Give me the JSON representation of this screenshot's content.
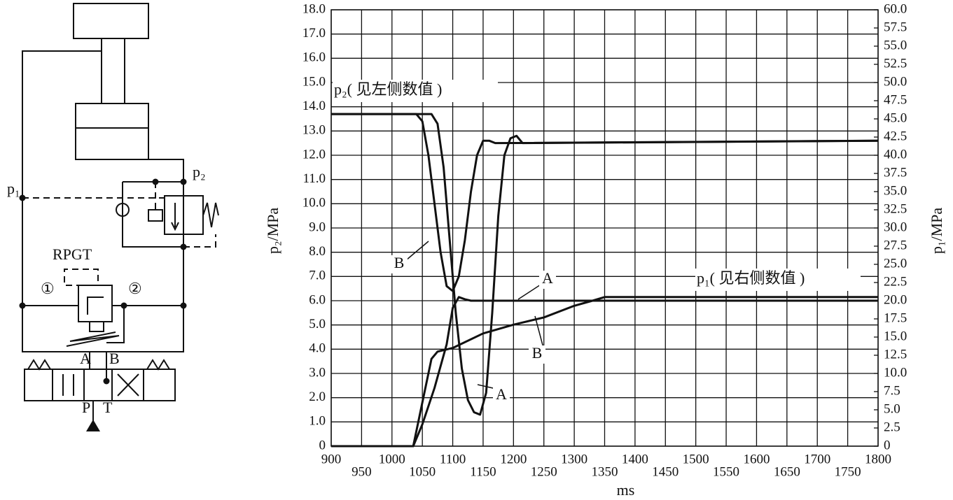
{
  "chart_data": {
    "type": "line",
    "x_label": "ms",
    "y_label": "p₂/MPa",
    "y2_label": "p₁/MPa",
    "annotations": [
      "p₂( 见左侧数值 )",
      "p₁( 见右侧数值 )"
    ],
    "xlim": [
      900,
      1800
    ],
    "xticks": [
      900,
      950,
      1000,
      1050,
      1100,
      1150,
      1200,
      1250,
      1300,
      1350,
      1400,
      1450,
      1500,
      1550,
      1600,
      1650,
      1700,
      1750,
      1800
    ],
    "ylim": [
      0,
      18
    ],
    "yticks": [
      0,
      {
        "value": 1,
        "label": "1.0"
      },
      {
        "value": 2,
        "label": "2.0"
      },
      {
        "value": 3,
        "label": "3.0"
      },
      {
        "value": 4,
        "label": "4.0"
      },
      {
        "value": 5,
        "label": "5.0"
      },
      {
        "value": 6,
        "label": "6.0"
      },
      {
        "value": 7,
        "label": "7.0"
      },
      {
        "value": 8,
        "label": "8.0"
      },
      {
        "value": 9,
        "label": "9.0"
      },
      {
        "value": 10,
        "label": "10.0"
      },
      {
        "value": 11,
        "label": "11.0"
      },
      {
        "value": 12,
        "label": "12.0"
      },
      {
        "value": 13,
        "label": "13.0"
      },
      {
        "value": 14,
        "label": "14.0"
      },
      {
        "value": 15,
        "label": "15.0"
      },
      {
        "value": 16,
        "label": "16.0"
      },
      {
        "value": 17,
        "label": "17.0"
      },
      {
        "value": 18,
        "label": "18.0"
      }
    ],
    "y2lim": [
      0,
      60
    ],
    "y2ticks": [
      0,
      2.5,
      {
        "value": 5,
        "label": "5.0"
      },
      7.5,
      {
        "value": 10,
        "label": "10.0"
      },
      12.5,
      {
        "value": 15,
        "label": "15.0"
      },
      17.5,
      {
        "value": 20,
        "label": "20.0"
      },
      22.5,
      {
        "value": 25,
        "label": "25.0"
      },
      27.5,
      {
        "value": 30,
        "label": "30.0"
      },
      32.5,
      {
        "value": 35,
        "label": "35.0"
      },
      37.5,
      {
        "value": 40,
        "label": "40.0"
      },
      42.5,
      {
        "value": 45,
        "label": "45.0"
      },
      47.5,
      {
        "value": 50,
        "label": "50.0"
      },
      52.5,
      {
        "value": 55,
        "label": "55.0"
      },
      57.5,
      {
        "value": 60,
        "label": "60.0"
      }
    ],
    "grid": true,
    "series": [
      {
        "name": "B",
        "color": "#111111",
        "x": [
          900,
          1040,
          1050,
          1060,
          1070,
          1080,
          1090,
          1100,
          1110,
          1120,
          1130,
          1140,
          1150,
          1160,
          1170,
          1800
        ],
        "values": [
          13.7,
          13.7,
          13.4,
          12,
          10,
          8,
          6.6,
          6.4,
          7,
          8.5,
          10.5,
          12,
          12.6,
          12.6,
          12.5,
          12.6
        ]
      },
      {
        "name": "A",
        "color": "#111111",
        "x": [
          900,
          1065,
          1075,
          1085,
          1095,
          1105,
          1115,
          1125,
          1135,
          1145,
          1155,
          1165,
          1175,
          1185,
          1195,
          1205,
          1215,
          1800
        ],
        "values": [
          13.7,
          13.7,
          13.3,
          11.5,
          8.5,
          5.5,
          3.2,
          1.9,
          1.4,
          1.3,
          2.2,
          5.5,
          9.5,
          12,
          12.7,
          12.8,
          12.5,
          12.6
        ]
      },
      {
        "name": "A",
        "color": "#111111",
        "axis": "y2",
        "x": [
          900,
          1035,
          1050,
          1070,
          1090,
          1100,
          1110,
          1120,
          1130,
          1800
        ],
        "values": [
          0,
          0,
          3,
          8,
          14,
          19,
          20.5,
          20.2,
          20,
          20
        ]
      },
      {
        "name": "B",
        "color": "#111111",
        "axis": "y2",
        "x": [
          900,
          1035,
          1050,
          1065,
          1075,
          1090,
          1100,
          1150,
          1200,
          1250,
          1300,
          1330,
          1350,
          1800
        ],
        "values": [
          0,
          0,
          6,
          12,
          13,
          13.3,
          13.5,
          15.5,
          16.7,
          17.7,
          19.3,
          20,
          20.5,
          20.5
        ]
      }
    ]
  },
  "diagram": {
    "labels": [
      "p₁",
      "p₂",
      "RPGT",
      "①",
      "②",
      "A",
      "B",
      "P",
      "T"
    ]
  }
}
